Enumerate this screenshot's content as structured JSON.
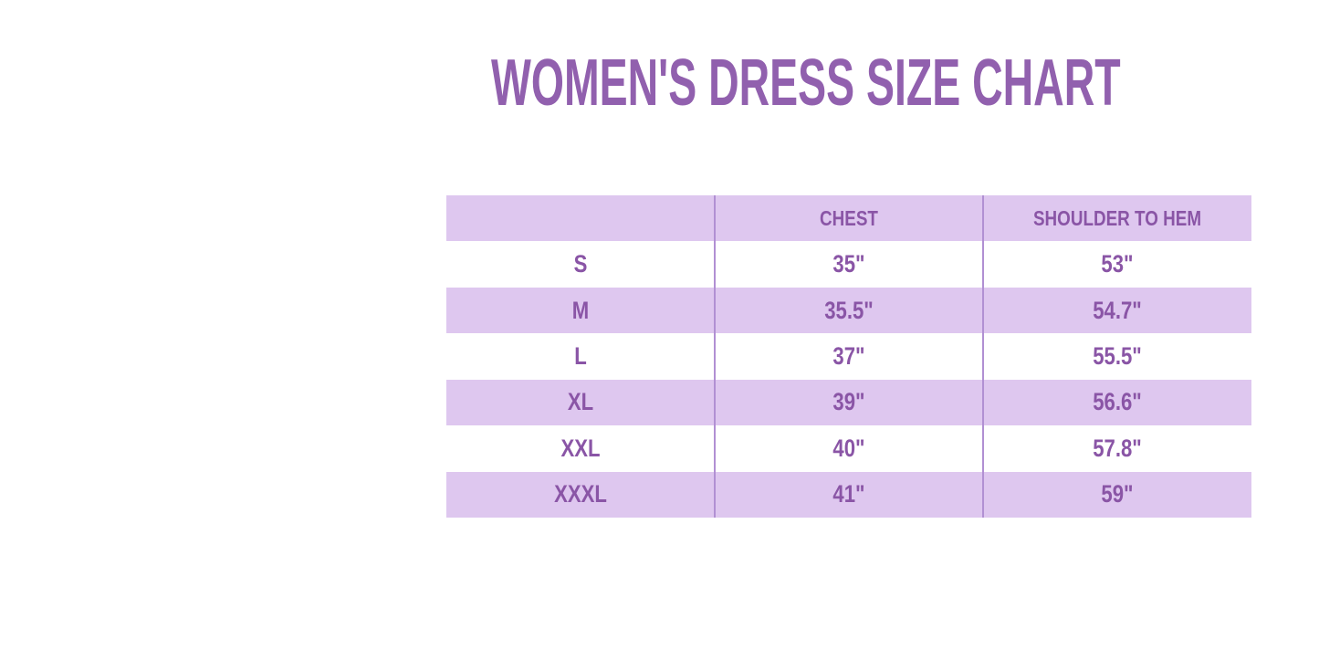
{
  "title": "WOMEN'S DRESS SIZE CHART",
  "colors": {
    "background": "#ffffff",
    "title_purple": "#9160ae",
    "cell_text_purple": "#8a55a6",
    "row_lavender": "#dec7ef",
    "row_white": "#ffffff",
    "column_divider": "#b190d3"
  },
  "chart_data": {
    "type": "table",
    "title": "WOMEN'S DRESS SIZE CHART",
    "columns": [
      "",
      "CHEST",
      "SHOULDER TO HEM"
    ],
    "rows": [
      [
        "S",
        "35\"",
        "53\""
      ],
      [
        "M",
        "35.5\"",
        "54.7\""
      ],
      [
        "L",
        "37\"",
        "55.5\""
      ],
      [
        "XL",
        "39\"",
        "56.6\""
      ],
      [
        "XXL",
        "40\"",
        "57.8\""
      ],
      [
        "XXXL",
        "41\"",
        "59\""
      ]
    ],
    "layout": {
      "row_striping": "header and even data rows lavender, odd data rows white",
      "grid": "vertical column dividers only, no horizontal borders",
      "columns_equal_width": true
    }
  }
}
